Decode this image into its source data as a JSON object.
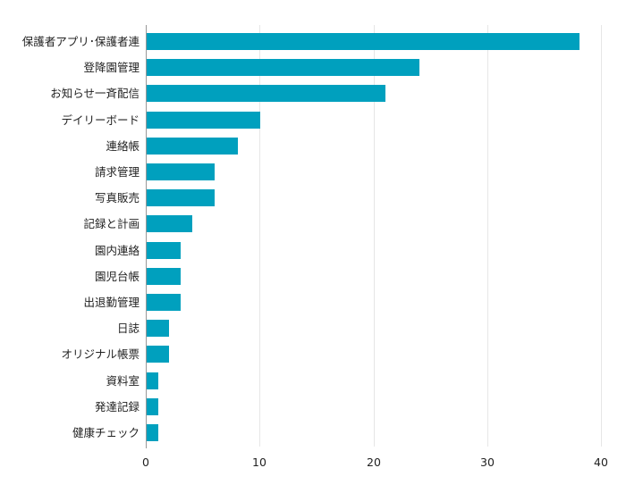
{
  "chart_data": {
    "type": "bar",
    "orientation": "horizontal",
    "title": "",
    "xlabel": "",
    "ylabel": "",
    "xlim": [
      0,
      40
    ],
    "x_ticks": [
      0,
      10,
      20,
      30,
      40
    ],
    "grid": true,
    "legend": null,
    "bar_color": "#00a0be",
    "categories": [
      "保護者アプリ･保護者連",
      "登降園管理",
      "お知らせ一斉配信",
      "デイリーボード",
      "連絡帳",
      "請求管理",
      "写真販売",
      "記録と計画",
      "園内連絡",
      "園児台帳",
      "出退勤管理",
      "日誌",
      "オリジナル帳票",
      "資料室",
      "発達記録",
      "健康チェック"
    ],
    "values": [
      38,
      24,
      21,
      10,
      8,
      6,
      6,
      4,
      3,
      3,
      3,
      2,
      2,
      1,
      1,
      1
    ]
  },
  "axis": {
    "tick_labels": [
      "0",
      "10",
      "20",
      "30",
      "40"
    ]
  }
}
